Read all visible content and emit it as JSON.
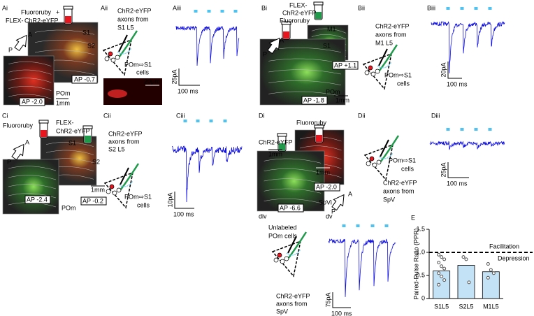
{
  "panels": [
    {
      "label": "Ai",
      "texts": [
        "Fluororuby",
        "+",
        "FLEX-",
        "ChR2-eYFP",
        "A",
        "P",
        "S1",
        "S2",
        "AP -0.7",
        "AP -2.0",
        "POm",
        "1mm"
      ]
    },
    {
      "label": "Aii",
      "texts": [
        "ChR2-eYFP",
        "axons from",
        "S1 L5",
        "POm⇨S1",
        "cells",
        "20μm"
      ]
    },
    {
      "label": "Aiii",
      "texts": [
        "25pA",
        "100 ms"
      ]
    },
    {
      "label": "Bi",
      "texts": [
        "FLEX-",
        "ChR2-eYFP",
        "Fluororuby",
        "A",
        "P",
        "M1",
        "S1",
        "AP +1.1",
        "AP -1.8",
        "POm",
        "1mm"
      ]
    },
    {
      "label": "Bii",
      "texts": [
        "ChR2-eYFP",
        "axons from",
        "M1 L5",
        "POm⇨S1",
        "cells"
      ]
    },
    {
      "label": "Biii",
      "texts": [
        "20pA",
        "100 ms"
      ]
    },
    {
      "label": "Ci",
      "texts": [
        "Fluororuby",
        "FLEX-",
        "ChR2-eYFP",
        "A",
        "P",
        "S1",
        "S2",
        "1mm",
        "AP -2.4",
        "AP -0.2",
        "POm"
      ]
    },
    {
      "label": "Cii",
      "texts": [
        "ChR2-eYFP",
        "axons from",
        "S2 L5",
        "POm⇨S1",
        "cells"
      ]
    },
    {
      "label": "Ciii",
      "texts": [
        "10pA",
        "100 ms"
      ]
    },
    {
      "label": "Di",
      "texts": [
        "Fluororuby",
        "ChR2-eYFP",
        "1mm",
        "1mm",
        "AP -2.0",
        "AP -6.6",
        "SpVi",
        "A",
        "P"
      ]
    },
    {
      "label": "Dii",
      "texts": [
        "POm⇨S1",
        "cells",
        "ChR2-eYFP",
        "axons from",
        "SpV"
      ]
    },
    {
      "label": "Diii",
      "texts": [
        "25pA",
        "100 ms"
      ]
    },
    {
      "label": "div",
      "texts": [
        "Unlabeled",
        "POm cells",
        "ChR2-eYFP",
        "axons from",
        "SpV"
      ]
    },
    {
      "label": "dv",
      "texts": [
        "75pA",
        "100 ms"
      ]
    }
  ],
  "chart_data": {
    "type": "bar",
    "label": "E",
    "ylabel": "Paired-Pulse Ratio (PPR)",
    "categories": [
      "S1L5",
      "S2L5",
      "M1L5"
    ],
    "values": [
      0.6,
      0.72,
      0.58
    ],
    "color": "#c4e2f5",
    "points": [
      [
        0.95,
        0.9,
        0.85,
        0.78,
        0.7,
        0.65,
        0.55,
        0.48,
        0.4,
        0.3
      ],
      [
        0.9,
        0.85,
        0.35
      ],
      [
        0.75,
        0.62,
        0.55,
        0.45
      ]
    ],
    "ylim": [
      0,
      1.5
    ],
    "yticks": [
      0,
      0.5,
      {
        "value": 1,
        "label": "1.0"
      },
      1.5
    ],
    "reference_line": {
      "value": 1,
      "above": "Facilitation",
      "below": "Depression"
    }
  }
}
